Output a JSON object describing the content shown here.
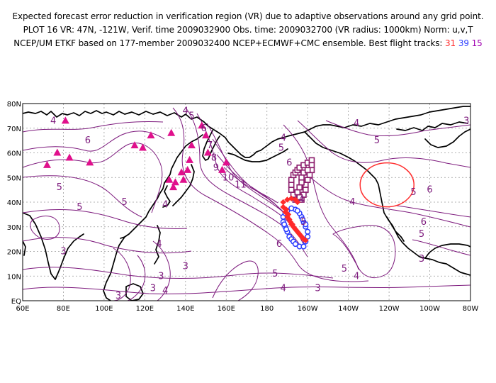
{
  "header": {
    "line1": "Expected forecast error reduction in verification region (VR) due to adaptive observations around any grid point.",
    "line2": "PLOT 16 VR: 47N, -121W, Verif. time 2009032900 Obs. time: 2009032700 (VR radius: 1000km) Norm: u,v,T",
    "line3_prefix": "NCEP/UM ETKF based on 177-member 2009032400 NCEP+ECMWF+CMC ensemble. Best flight tracks:",
    "track_red": "31",
    "track_blue": "39",
    "track_purple": "15"
  },
  "axes": {
    "lat_labels": [
      "80N",
      "70N",
      "60N",
      "50N",
      "40N",
      "30N",
      "20N",
      "10N",
      "EQ"
    ],
    "lon_labels": [
      "60E",
      "80E",
      "100E",
      "120E",
      "140E",
      "160E",
      "180",
      "160W",
      "140W",
      "120W",
      "100W",
      "80W"
    ]
  },
  "verification_region": {
    "lat": 47,
    "lon": -121,
    "radius_km": 1000
  },
  "colors": {
    "contour": "#7d1a7d",
    "coast": "#000000",
    "grid": "#9a9a9a",
    "vr_circle": "#ff3030",
    "raob_triangle": "#e0108c",
    "track_red": "#ff2a2a",
    "track_blue": "#2a3cff",
    "track_purple": "#8a1a6a"
  },
  "contour_labels": [
    {
      "text": "4",
      "lon": 75,
      "lat": 73
    },
    {
      "text": "6",
      "lon": 92,
      "lat": 65
    },
    {
      "text": "5",
      "lon": 78,
      "lat": 46
    },
    {
      "text": "5",
      "lon": 88,
      "lat": 38
    },
    {
      "text": "5",
      "lon": 110,
      "lat": 40
    },
    {
      "text": "4",
      "lon": 130,
      "lat": 39
    },
    {
      "text": "4",
      "lon": 140,
      "lat": 77
    },
    {
      "text": "5",
      "lon": 143,
      "lat": 75
    },
    {
      "text": "6",
      "lon": 149,
      "lat": 70
    },
    {
      "text": "7",
      "lon": 152,
      "lat": 63
    },
    {
      "text": "8",
      "lon": 154,
      "lat": 58
    },
    {
      "text": "9",
      "lon": 155,
      "lat": 54
    },
    {
      "text": "10",
      "lon": 161,
      "lat": 50
    },
    {
      "text": "11",
      "lon": 167,
      "lat": 47
    },
    {
      "text": "4",
      "lon": -172,
      "lat": 66
    },
    {
      "text": "5",
      "lon": -173,
      "lat": 62
    },
    {
      "text": "6",
      "lon": -169,
      "lat": 56
    },
    {
      "text": "4",
      "lon": -136,
      "lat": 72
    },
    {
      "text": "5",
      "lon": -126,
      "lat": 65
    },
    {
      "text": "3",
      "lon": -82,
      "lat": 73
    },
    {
      "text": "6",
      "lon": -100,
      "lat": 45
    },
    {
      "text": "5",
      "lon": -108,
      "lat": 44
    },
    {
      "text": "4",
      "lon": -138,
      "lat": 40
    },
    {
      "text": "4",
      "lon": -163,
      "lat": 41
    },
    {
      "text": "5",
      "lon": -162,
      "lat": 32
    },
    {
      "text": "6",
      "lon": -174,
      "lat": 23
    },
    {
      "text": "6",
      "lon": -103,
      "lat": 32
    },
    {
      "text": "5",
      "lon": -104,
      "lat": 27
    },
    {
      "text": "3",
      "lon": -104,
      "lat": 17
    },
    {
      "text": "4",
      "lon": -136,
      "lat": 10
    },
    {
      "text": "5",
      "lon": -142,
      "lat": 13
    },
    {
      "text": "5",
      "lon": -176,
      "lat": 11
    },
    {
      "text": "4",
      "lon": -172,
      "lat": 5
    },
    {
      "text": "3",
      "lon": -155,
      "lat": 5
    },
    {
      "text": "4",
      "lon": 127,
      "lat": 23
    },
    {
      "text": "3",
      "lon": 140,
      "lat": 14
    },
    {
      "text": "3",
      "lon": 128,
      "lat": 10
    },
    {
      "text": "3",
      "lon": 124,
      "lat": 5
    },
    {
      "text": "4",
      "lon": 130,
      "lat": 4
    },
    {
      "text": "3",
      "lon": 80,
      "lat": 20
    },
    {
      "text": "3",
      "lon": 107,
      "lat": 2
    }
  ],
  "raob_sites": [
    {
      "lon": 81,
      "lat": 73
    },
    {
      "lon": 77,
      "lat": 60
    },
    {
      "lon": 72,
      "lat": 55
    },
    {
      "lon": 83,
      "lat": 58
    },
    {
      "lon": 93,
      "lat": 56
    },
    {
      "lon": 115,
      "lat": 63
    },
    {
      "lon": 119,
      "lat": 62
    },
    {
      "lon": 123,
      "lat": 67
    },
    {
      "lon": 133,
      "lat": 68
    },
    {
      "lon": 138,
      "lat": 52
    },
    {
      "lon": 132,
      "lat": 49
    },
    {
      "lon": 134,
      "lat": 46
    },
    {
      "lon": 135,
      "lat": 48
    },
    {
      "lon": 139,
      "lat": 49
    },
    {
      "lon": 141,
      "lat": 53
    },
    {
      "lon": 143,
      "lat": 63
    },
    {
      "lon": 148,
      "lat": 71
    },
    {
      "lon": 150,
      "lat": 67
    },
    {
      "lon": 151,
      "lat": 60
    },
    {
      "lon": 158,
      "lat": 53
    },
    {
      "lon": 160,
      "lat": 56
    },
    {
      "lon": 142,
      "lat": 57
    }
  ],
  "tracks": {
    "red": [
      [
        -172,
        38
      ],
      [
        -171,
        36
      ],
      [
        -170,
        34
      ],
      [
        -169,
        33
      ],
      [
        -168,
        31
      ],
      [
        -167,
        30
      ],
      [
        -166,
        29
      ],
      [
        -165,
        28
      ],
      [
        -164,
        27
      ],
      [
        -163,
        26
      ],
      [
        -162,
        25
      ],
      [
        -161,
        24.5
      ],
      [
        -170.5,
        37
      ],
      [
        -169.5,
        35
      ],
      [
        -168.5,
        32
      ],
      [
        -167.5,
        31
      ],
      [
        -166.5,
        29.5
      ],
      [
        -165.5,
        28.5
      ],
      [
        -164.5,
        27.5
      ],
      [
        -163.5,
        26.5
      ],
      [
        -162.5,
        25.5
      ],
      [
        -172,
        40
      ],
      [
        -170,
        41
      ],
      [
        -168,
        41.5
      ],
      [
        -166,
        41
      ],
      [
        -165,
        40
      ]
    ],
    "blue": [
      [
        -172,
        34
      ],
      [
        -172,
        32
      ],
      [
        -171,
        30
      ],
      [
        -170,
        28
      ],
      [
        -169,
        26
      ],
      [
        -168,
        25
      ],
      [
        -167,
        24
      ],
      [
        -166,
        23
      ],
      [
        -164,
        22
      ],
      [
        -162,
        22
      ],
      [
        -161,
        24
      ],
      [
        -160,
        26
      ],
      [
        -160,
        28
      ],
      [
        -161,
        30
      ],
      [
        -162,
        32
      ],
      [
        -163,
        34
      ],
      [
        -164,
        35.5
      ],
      [
        -166,
        37
      ],
      [
        -168,
        37.5
      ],
      [
        -170,
        36.5
      ],
      [
        -171,
        35.5
      ],
      [
        -165,
        36.5
      ],
      [
        -162.5,
        33
      ],
      [
        -161,
        31
      ],
      [
        -170.5,
        29
      ],
      [
        -171.5,
        31
      ]
    ],
    "purple": [
      [
        -166,
        41
      ],
      [
        -167,
        43
      ],
      [
        -168,
        45
      ],
      [
        -168,
        47
      ],
      [
        -168,
        49
      ],
      [
        -167,
        51
      ],
      [
        -166,
        52
      ],
      [
        -165,
        53
      ],
      [
        -164,
        54
      ],
      [
        -162,
        55
      ],
      [
        -160,
        56
      ],
      [
        -158,
        57
      ],
      [
        -158,
        55
      ],
      [
        -158,
        53
      ],
      [
        -159,
        51
      ],
      [
        -160,
        49
      ],
      [
        -161,
        47
      ],
      [
        -161,
        45
      ],
      [
        -162,
        43
      ],
      [
        -163,
        41
      ],
      [
        -164,
        42
      ],
      [
        -165,
        44
      ],
      [
        -164,
        46
      ],
      [
        -163,
        48
      ],
      [
        -163,
        50
      ],
      [
        -162,
        52
      ],
      [
        -160,
        53
      ]
    ]
  }
}
